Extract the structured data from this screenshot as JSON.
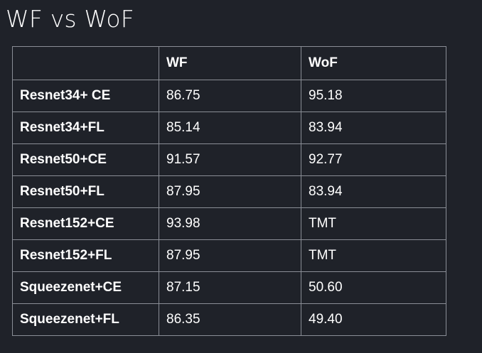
{
  "title": "WF vs WoF",
  "table": {
    "headers": [
      "",
      "WF",
      "WoF"
    ],
    "rows": [
      {
        "model": "Resnet34+ CE",
        "wf": "86.75",
        "wof": "95.18"
      },
      {
        "model": "Resnet34+FL",
        "wf": "85.14",
        "wof": "83.94"
      },
      {
        "model": "Resnet50+CE",
        "wf": "91.57",
        "wof": "92.77"
      },
      {
        "model": "Resnet50+FL",
        "wf": "87.95",
        "wof": "83.94"
      },
      {
        "model": "Resnet152+CE",
        "wf": "93.98",
        "wof": "TMT"
      },
      {
        "model": "Resnet152+FL",
        "wf": "87.95",
        "wof": "TMT"
      },
      {
        "model": "Squeezenet+CE",
        "wf": "87.15",
        "wof": "50.60"
      },
      {
        "model": "Squeezenet+FL",
        "wf": "86.35",
        "wof": "49.40"
      }
    ]
  },
  "colors": {
    "background": "#1f2229",
    "text": "#ffffff",
    "border": "#8a8e96"
  }
}
